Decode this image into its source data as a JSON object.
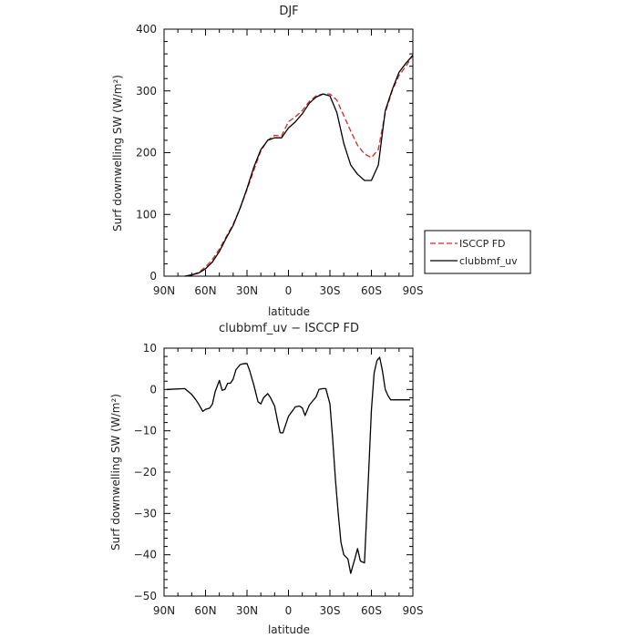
{
  "chart_data": [
    {
      "type": "line",
      "title": "DJF",
      "xlabel": "latitude",
      "ylabel": "Surf downwelling SW (W/m²)",
      "xlim": [
        -90,
        90
      ],
      "ylim": [
        0,
        400
      ],
      "xticks": [
        -90,
        -60,
        -30,
        0,
        30,
        60,
        90
      ],
      "xtick_labels": [
        "90N",
        "60N",
        "30N",
        "0",
        "30S",
        "60S",
        "90S"
      ],
      "yticks": [
        0,
        100,
        200,
        300,
        400
      ],
      "ytick_labels": [
        "0",
        "100",
        "200",
        "300",
        "400"
      ],
      "legend_position": "right",
      "series": [
        {
          "name": "ISCCP FD",
          "color": "#d62728",
          "dash": "dashed",
          "x": [
            -75,
            -70,
            -65,
            -60,
            -55,
            -50,
            -45,
            -40,
            -35,
            -30,
            -25,
            -20,
            -15,
            -10,
            -5,
            0,
            5,
            10,
            15,
            20,
            25,
            30,
            35,
            40,
            45,
            50,
            55,
            60,
            65,
            70,
            75,
            80,
            85,
            90
          ],
          "y": [
            0,
            2,
            6,
            15,
            27,
            44,
            64,
            84,
            110,
            140,
            172,
            203,
            220,
            228,
            227,
            250,
            258,
            268,
            283,
            292,
            295,
            295,
            285,
            260,
            235,
            212,
            198,
            192,
            205,
            265,
            300,
            325,
            340,
            358
          ]
        },
        {
          "name": "clubbmf_uv",
          "color": "#000000",
          "dash": "solid",
          "x": [
            -75,
            -70,
            -65,
            -60,
            -55,
            -50,
            -45,
            -40,
            -35,
            -30,
            -25,
            -20,
            -15,
            -10,
            -5,
            0,
            5,
            10,
            15,
            20,
            25,
            30,
            35,
            40,
            45,
            50,
            55,
            60,
            65,
            70,
            75,
            80,
            85,
            90
          ],
          "y": [
            0,
            2,
            5,
            12,
            23,
            40,
            62,
            82,
            110,
            142,
            177,
            205,
            220,
            224,
            224,
            240,
            250,
            263,
            280,
            290,
            295,
            292,
            265,
            215,
            180,
            165,
            155,
            155,
            180,
            268,
            302,
            330,
            345,
            358
          ]
        }
      ]
    },
    {
      "type": "line",
      "title": "clubbmf_uv − ISCCP FD",
      "xlabel": "latitude",
      "ylabel": "Surf downwelling SW (W/m²)",
      "xlim": [
        -90,
        90
      ],
      "ylim": [
        -50,
        10
      ],
      "xticks": [
        -90,
        -60,
        -30,
        0,
        30,
        60,
        90
      ],
      "xtick_labels": [
        "90N",
        "60N",
        "30N",
        "0",
        "30S",
        "60S",
        "90S"
      ],
      "yticks": [
        -50,
        -40,
        -30,
        -20,
        -10,
        0,
        10
      ],
      "ytick_labels": [
        "−50",
        "−40",
        "−30",
        "−20",
        "−10",
        "0",
        "10"
      ],
      "series": [
        {
          "color": "#000000",
          "dash": "solid",
          "x": [
            -88,
            -75,
            -70,
            -67,
            -65,
            -62,
            -60,
            -57,
            -55,
            -53,
            -50,
            -48,
            -46,
            -44,
            -42,
            -40,
            -38,
            -35,
            -33,
            -30,
            -28,
            -25,
            -22,
            -20,
            -18,
            -15,
            -13,
            -10,
            -8,
            -6,
            -4,
            0,
            5,
            8,
            10,
            12,
            15,
            17,
            20,
            22,
            25,
            27,
            30,
            32,
            34,
            36,
            38,
            40,
            43,
            45,
            48,
            50,
            52,
            55,
            58,
            60,
            62,
            64,
            66,
            68,
            70,
            72,
            74,
            76,
            78,
            80,
            82,
            85,
            88
          ],
          "y": [
            0,
            0.2,
            -1.2,
            -2.5,
            -3.5,
            -5.3,
            -4.8,
            -4.5,
            -3.5,
            -0.5,
            2.2,
            -0.2,
            0,
            1.5,
            1.5,
            2.5,
            4.8,
            6,
            6.2,
            6.3,
            4.5,
            1,
            -3,
            -3.5,
            -2,
            -1,
            -2,
            -4,
            -7.5,
            -10.5,
            -10.5,
            -6.5,
            -4.2,
            -4,
            -4.5,
            -6.3,
            -3.8,
            -3,
            -1.8,
            0,
            0.2,
            0.2,
            -3.5,
            -12,
            -22,
            -30,
            -37,
            -40,
            -41,
            -44.5,
            -41,
            -38.5,
            -41.5,
            -42,
            -20,
            -5,
            4,
            7,
            7.8,
            4.5,
            0,
            -1.5,
            -2.5,
            -2.5,
            -2.5,
            -2.5,
            -2.5,
            -2.5,
            -2.5
          ]
        }
      ]
    }
  ]
}
